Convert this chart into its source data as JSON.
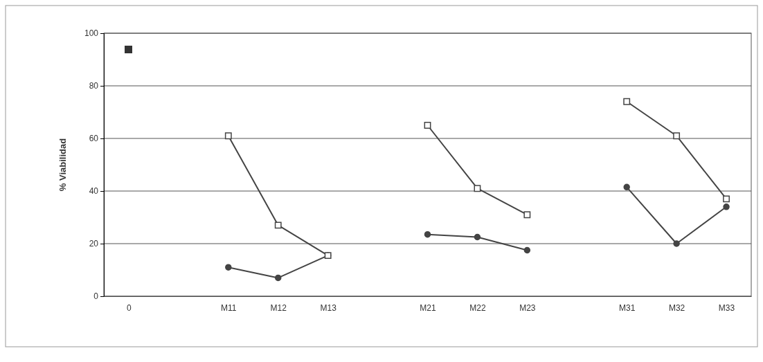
{
  "chart_data": {
    "type": "line",
    "ylabel": "% Viabilidad",
    "categories": [
      "0",
      null,
      "M11",
      "M12",
      "M13",
      null,
      "M21",
      "M22",
      "M23",
      null,
      "M31",
      "M32",
      "M33"
    ],
    "series": [
      {
        "color": "#444444",
        "marker": "square",
        "values": [
          null,
          null,
          61,
          27,
          15.5,
          null,
          65,
          41,
          31,
          null,
          74,
          61,
          37
        ]
      },
      {
        "color": "#444444",
        "marker": "circle",
        "values": [
          null,
          null,
          11,
          7,
          15.5,
          null,
          23.5,
          22.5,
          17.5,
          null,
          41.5,
          20,
          34
        ]
      }
    ],
    "ylim": [
      0,
      100
    ],
    "yticks": [
      0,
      20,
      40,
      60,
      80,
      100
    ],
    "grid": "y",
    "line_style": "solid"
  }
}
